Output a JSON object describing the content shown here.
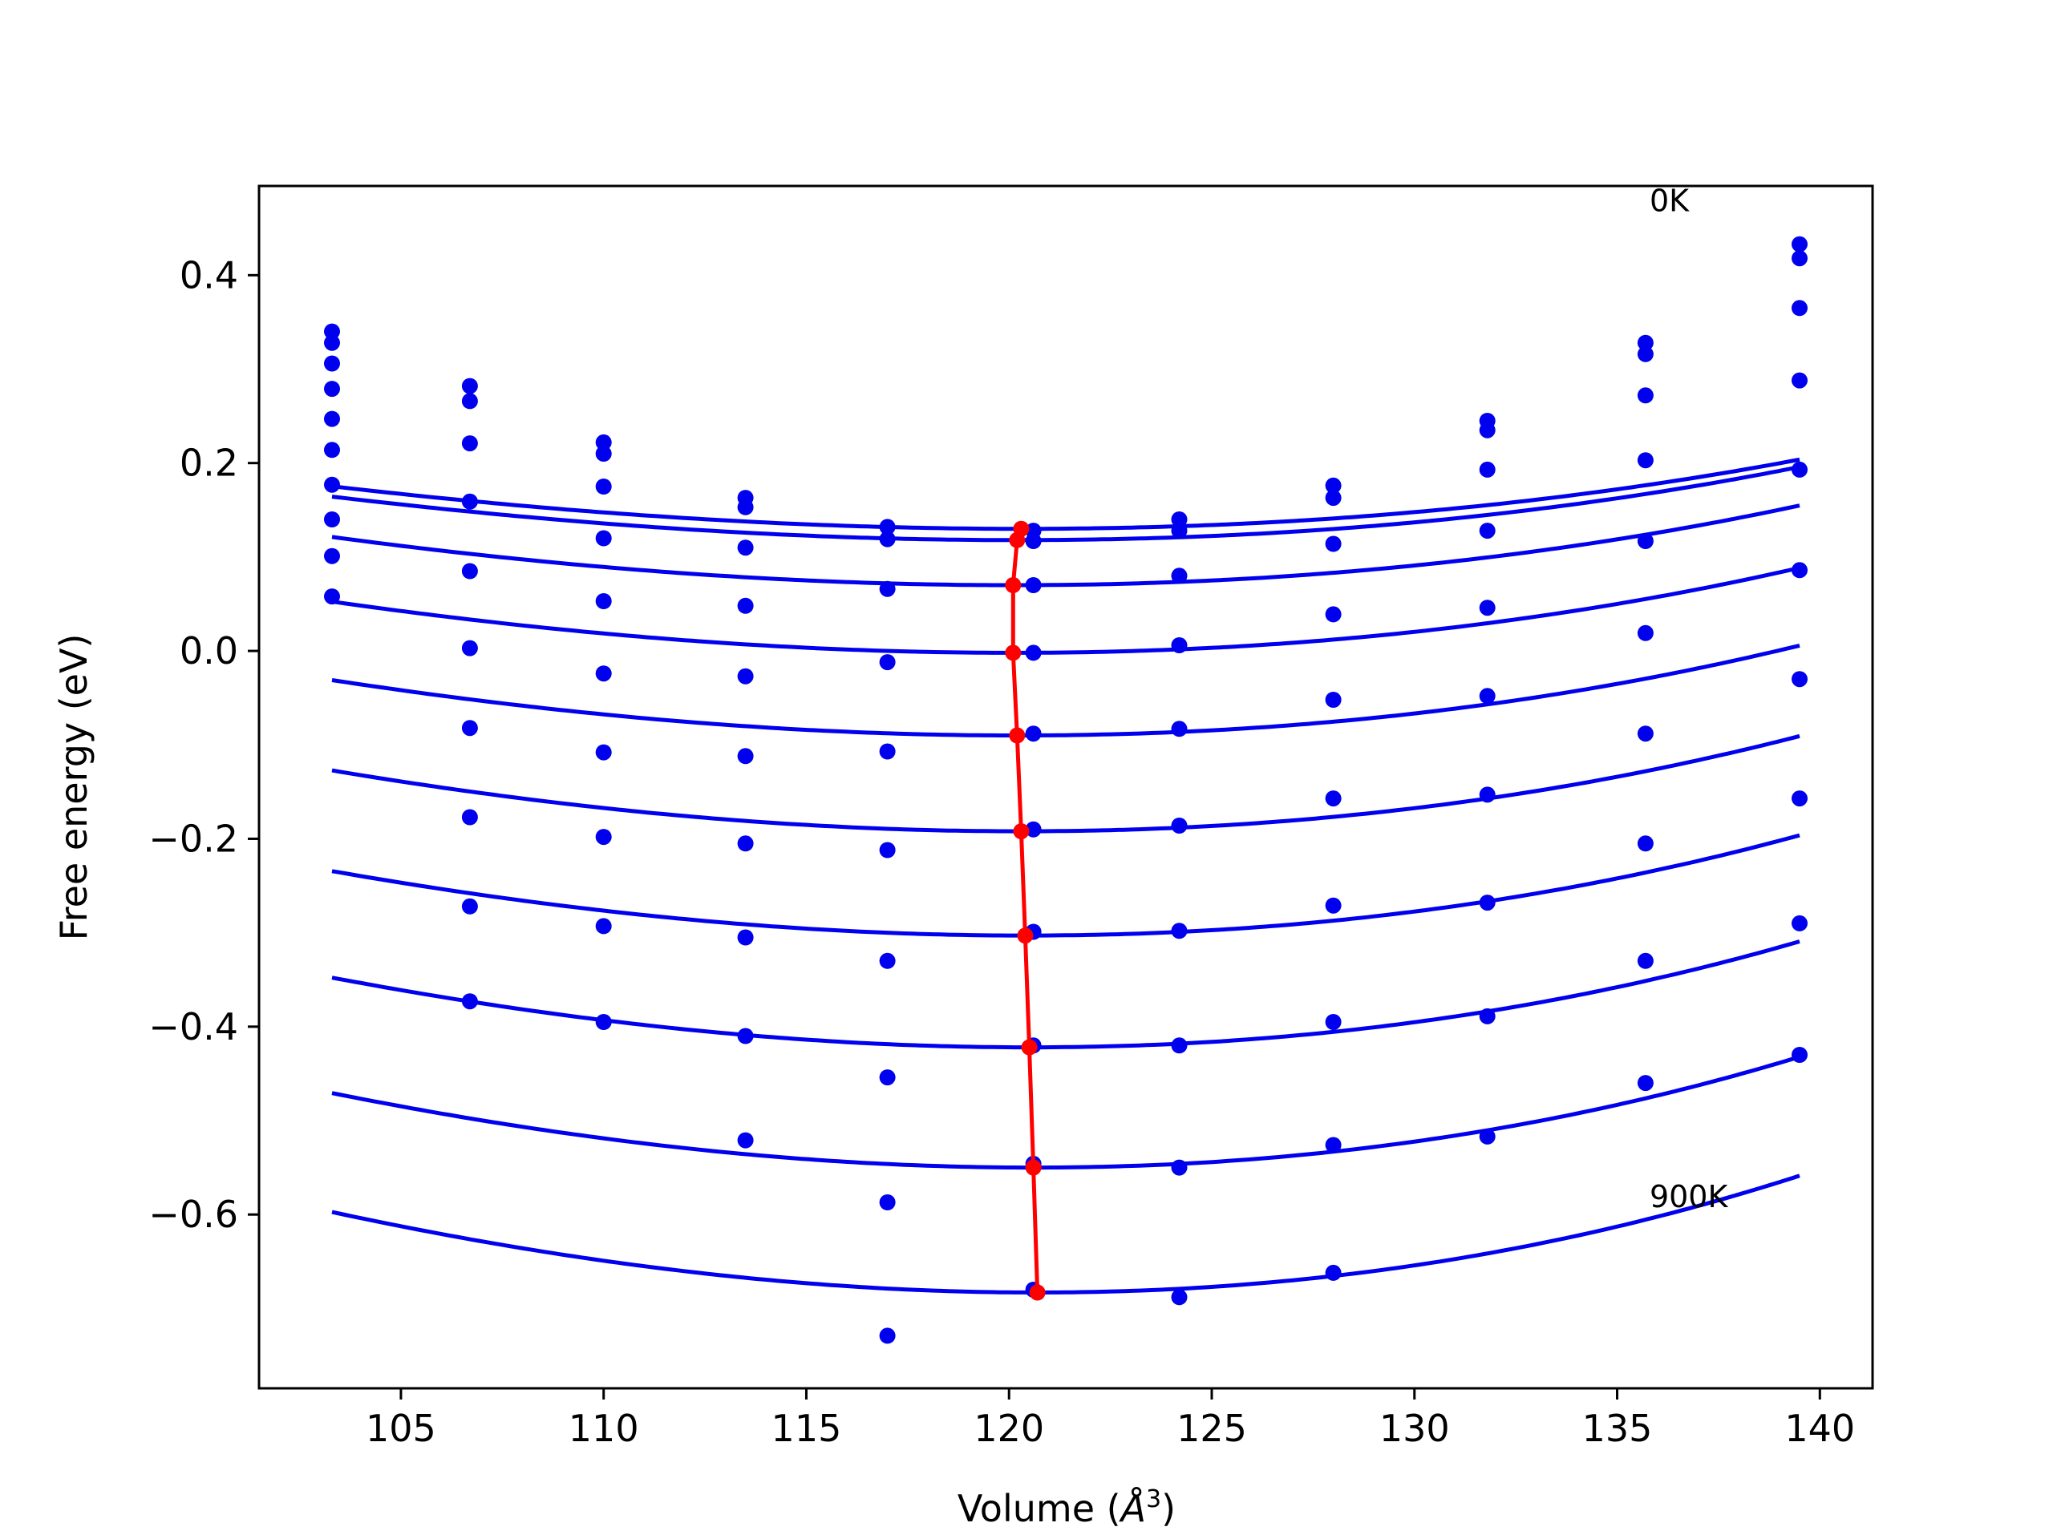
{
  "chart_data": {
    "type": "line",
    "title": "",
    "xlabel_main": "Volume (",
    "xlabel_unit": "Å",
    "xlabel_exp": "3",
    "xlabel_close": ")",
    "ylabel": "Free energy (eV)",
    "xlim": [
      101.5,
      141.3
    ],
    "ylim": [
      -0.785,
      0.495
    ],
    "xticks": [
      105,
      110,
      115,
      120,
      125,
      130,
      135,
      140
    ],
    "xtick_labels": [
      "105",
      "110",
      "115",
      "120",
      "125",
      "130",
      "135",
      "140"
    ],
    "yticks": [
      0.4,
      0.2,
      0.0,
      -0.2,
      -0.4,
      -0.6
    ],
    "ytick_labels": [
      "0.4",
      "0.2",
      "0.0",
      "−0.2",
      "−0.4",
      "−0.6"
    ],
    "grid": false,
    "annotations": [
      {
        "text": "0K",
        "x": 135.8,
        "y": 0.48
      },
      {
        "text": "900K",
        "x": 135.8,
        "y": -0.58
      }
    ],
    "colors": {
      "fit": "#0000ee",
      "points": "#0000ee",
      "minimum": "#ff0000"
    },
    "volumes": [
      103.3,
      106.7,
      110.0,
      113.5,
      117.0,
      120.6,
      124.2,
      128.0,
      131.8,
      135.7,
      139.5
    ],
    "curve_range": [
      103.3,
      139.5
    ],
    "series": [
      {
        "fit": {
          "V0": 120.3,
          "Emin": 0.13,
          "a": 0.000177,
          "b": 1.2e-06
        },
        "points": [
          0.34,
          0.282,
          0.222,
          0.163,
          0.132,
          0.128,
          0.14,
          0.176,
          0.245,
          0.328,
          0.433
        ]
      },
      {
        "fit": {
          "V0": 120.2,
          "Emin": 0.118,
          "a": 0.000184,
          "b": 1.3e-06
        },
        "points": [
          0.328,
          0.266,
          0.21,
          0.153,
          0.119,
          0.117,
          0.128,
          0.163,
          0.235,
          0.316,
          0.418
        ]
      },
      {
        "fit": {
          "V0": 120.1,
          "Emin": 0.07,
          "a": 0.000202,
          "b": 1.2e-06
        },
        "points": [
          0.306,
          0.221,
          0.175,
          0.11,
          0.066,
          0.07,
          0.08,
          0.114,
          0.193,
          0.272,
          0.365
        ]
      },
      {
        "fit": {
          "V0": 120.1,
          "Emin": -0.002,
          "a": 0.000215,
          "b": 1.3e-06
        },
        "points": [
          0.279,
          0.159,
          0.12,
          0.048,
          -0.012,
          -0.002,
          0.006,
          0.039,
          0.128,
          0.203,
          0.288
        ]
      },
      {
        "fit": {
          "V0": 120.2,
          "Emin": -0.09,
          "a": 0.00023,
          "b": 1.4e-06
        },
        "points": [
          0.247,
          0.085,
          0.053,
          -0.027,
          -0.107,
          -0.088,
          -0.083,
          -0.052,
          0.046,
          0.117,
          0.193
        ]
      },
      {
        "fit": {
          "V0": 120.3,
          "Emin": -0.192,
          "a": 0.000248,
          "b": 1.4e-06
        },
        "points": [
          0.214,
          0.003,
          -0.024,
          -0.112,
          -0.212,
          -0.19,
          -0.186,
          -0.157,
          -0.048,
          0.019,
          0.086
        ]
      },
      {
        "fit": {
          "V0": 120.4,
          "Emin": -0.303,
          "a": 0.000262,
          "b": 1.6e-06
        },
        "points": [
          0.177,
          -0.082,
          -0.108,
          -0.205,
          -0.33,
          -0.299,
          -0.298,
          -0.271,
          -0.153,
          -0.088,
          -0.03
        ]
      },
      {
        "fit": {
          "V0": 120.5,
          "Emin": -0.422,
          "a": 0.00028,
          "b": 1.7e-06
        },
        "points": [
          0.14,
          -0.177,
          -0.198,
          -0.305,
          -0.454,
          -0.42,
          -0.42,
          -0.395,
          -0.268,
          -0.205,
          -0.157
        ]
      },
      {
        "fit": {
          "V0": 120.6,
          "Emin": -0.55,
          "a": 0.000296,
          "b": 1.8e-06
        },
        "points": [
          0.101,
          -0.272,
          -0.293,
          -0.41,
          -0.587,
          -0.546,
          -0.55,
          -0.526,
          -0.389,
          -0.33,
          -0.29
        ]
      },
      {
        "fit": {
          "V0": 120.7,
          "Emin": -0.683,
          "a": 0.000316,
          "b": 1.9e-06
        },
        "points": [
          0.058,
          -0.373,
          -0.395,
          -0.521,
          -0.729,
          -0.68,
          -0.688,
          -0.662,
          -0.517,
          -0.46,
          -0.43
        ]
      }
    ],
    "minimum_line": {
      "x": [
        120.3,
        120.2,
        120.1,
        120.1,
        120.2,
        120.3,
        120.4,
        120.5,
        120.6,
        120.7
      ],
      "y": [
        0.13,
        0.118,
        0.07,
        -0.002,
        -0.09,
        -0.192,
        -0.303,
        -0.422,
        -0.55,
        -0.683
      ]
    }
  }
}
